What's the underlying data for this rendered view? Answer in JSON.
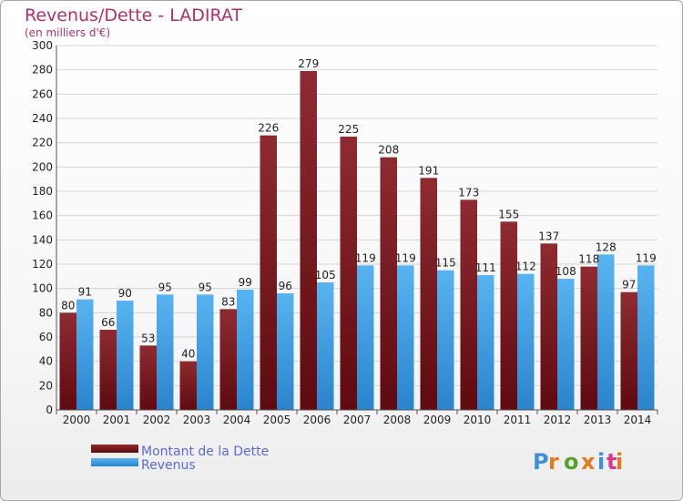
{
  "chart_data": {
    "type": "bar",
    "title": "Revenus/Dette - LADIRAT",
    "subtitle": "(en milliers d'€)",
    "categories": [
      "2000",
      "2001",
      "2002",
      "2003",
      "2004",
      "2005",
      "2006",
      "2007",
      "2008",
      "2009",
      "2010",
      "2011",
      "2012",
      "2013",
      "2014"
    ],
    "series": [
      {
        "name": "Montant de la Dette",
        "color": "#7a1a1f",
        "values": [
          80,
          66,
          53,
          40,
          83,
          226,
          279,
          225,
          208,
          191,
          173,
          155,
          137,
          118,
          97
        ]
      },
      {
        "name": "Revenus",
        "color": "#3d9ee4",
        "values": [
          91,
          90,
          95,
          95,
          99,
          96,
          105,
          119,
          119,
          115,
          111,
          112,
          108,
          128,
          119
        ]
      }
    ],
    "ylim": [
      0,
      300
    ],
    "yticks": [
      0,
      20,
      40,
      60,
      80,
      100,
      120,
      140,
      160,
      180,
      200,
      220,
      240,
      260,
      280,
      300
    ],
    "grid": true,
    "legend_position": "bottom-left"
  },
  "logo": {
    "text": "Proxiti",
    "colors": [
      "#3a8fd8",
      "#e07a20",
      "#5aa02c",
      "#e07a20",
      "#3a8fd8",
      "#d83a8a",
      "#e07a20"
    ]
  }
}
